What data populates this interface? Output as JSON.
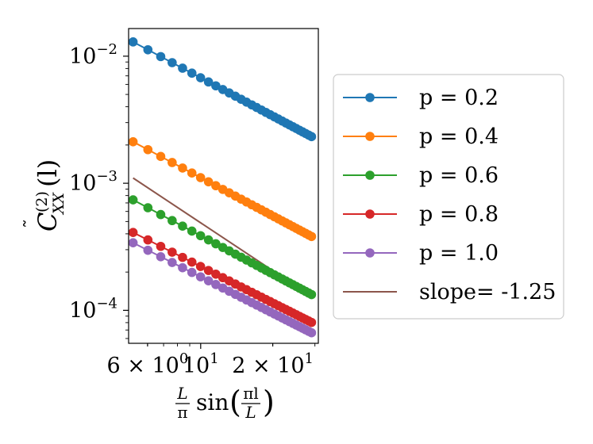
{
  "chart_data": {
    "type": "line",
    "scale": {
      "x": "log",
      "y": "log"
    },
    "xlim": [
      5.0,
      31.0
    ],
    "ylim": [
      5.5e-05,
      0.0165
    ],
    "xlabel": "L/π sin(πl/L)",
    "ylabel": "C̃_XX^(2)(l)",
    "x_ticks": [
      {
        "value": 6,
        "mantissa": "6 × 10",
        "exp": "0"
      },
      {
        "value": 10,
        "mantissa": "10",
        "exp": "1"
      },
      {
        "value": 20,
        "mantissa": "2 × 10",
        "exp": "1"
      }
    ],
    "y_ticks": [
      {
        "value": 0.01,
        "mantissa": "10",
        "exp": "−2"
      },
      {
        "value": 0.001,
        "mantissa": "10",
        "exp": "−3"
      },
      {
        "value": 0.0001,
        "mantissa": "10",
        "exp": "−4"
      }
    ],
    "x": [
      5.22,
      6.02,
      6.81,
      7.6,
      8.4,
      9.19,
      9.99,
      10.78,
      11.57,
      12.37,
      13.16,
      13.96,
      14.75,
      15.54,
      16.34,
      17.13,
      17.93,
      18.72,
      19.51,
      20.31,
      21.1,
      21.9,
      22.69,
      23.48,
      24.28,
      25.07,
      25.87,
      26.66,
      27.45,
      28.25,
      29.04
    ],
    "series": [
      {
        "name": "p = 0.2",
        "color": "#1f77b4",
        "amplitude": 0.01295,
        "slope": -1.0
      },
      {
        "name": "p = 0.4",
        "color": "#ff7f0e",
        "amplitude": 0.00212,
        "slope": -1.0
      },
      {
        "name": "p = 0.6",
        "color": "#2ca02c",
        "amplitude": 0.00074,
        "slope": -1.0
      },
      {
        "name": "p = 0.8",
        "color": "#d62728",
        "amplitude": 0.00041,
        "slope": -0.95
      },
      {
        "name": "p = 1.0",
        "color": "#9467bd",
        "amplitude": 0.00034,
        "slope": -0.95
      }
    ],
    "reference_line": {
      "name": "slope= -1.25",
      "color": "#8c564b",
      "slope": -1.25,
      "x_start": 5.22,
      "x_end": 29.04,
      "y_start": 0.0011
    },
    "legend": {
      "placement": "outside-right",
      "entries": [
        "p = 0.2",
        "p = 0.4",
        "p = 0.6",
        "p = 0.8",
        "p = 1.0",
        "slope= -1.25"
      ]
    },
    "grid": false
  }
}
